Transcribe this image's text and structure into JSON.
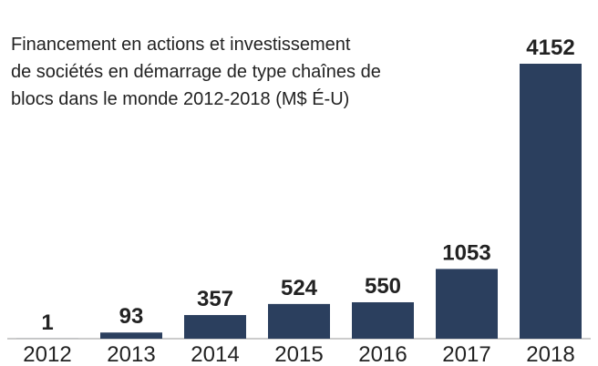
{
  "chart_data": {
    "type": "bar",
    "title": [
      "Financement en actions et investissement",
      "de sociétés en démarrage de type chaînes de",
      "blocs dans le monde 2012-2018 (M$ É-U)"
    ],
    "categories": [
      "2012",
      "2013",
      "2014",
      "2015",
      "2016",
      "2017",
      "2018"
    ],
    "values": [
      1,
      93,
      357,
      524,
      550,
      1053,
      4152
    ],
    "color": "#2b3f5e"
  }
}
